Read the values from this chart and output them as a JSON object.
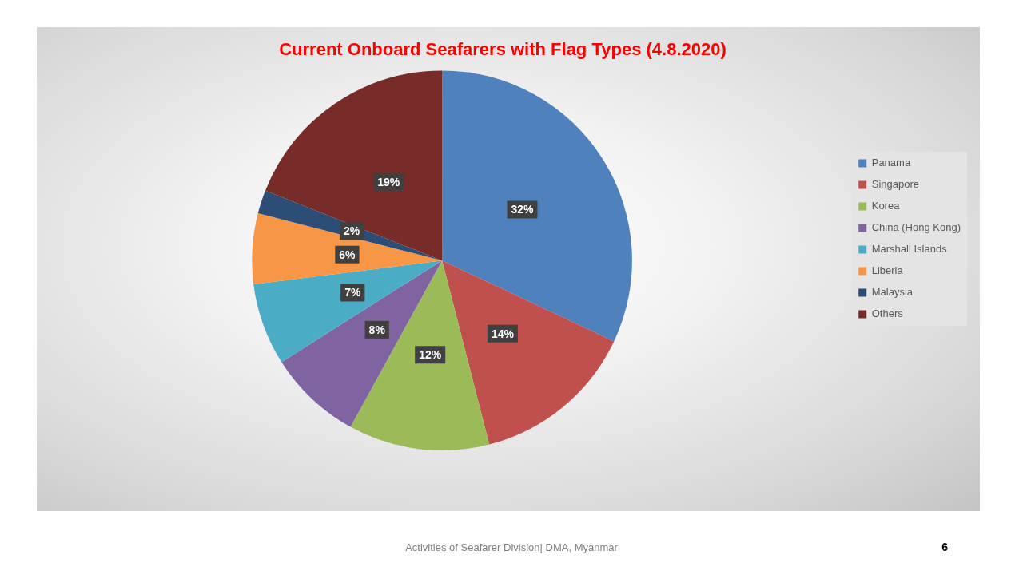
{
  "chart_data": {
    "type": "pie",
    "title": "Current Onboard Seafarers with Flag Types (4.8.2020)",
    "categories": [
      "Panama",
      "Singapore",
      "Korea",
      "China (Hong Kong)",
      "Marshall Islands",
      "Liberia",
      "Malaysia",
      "Others"
    ],
    "values": [
      32,
      14,
      12,
      8,
      7,
      6,
      2,
      19
    ],
    "colors": [
      "#4f81bd",
      "#c0504d",
      "#9bbb59",
      "#8064a2",
      "#4bacc6",
      "#f79646",
      "#2c4d75",
      "#772c2a"
    ],
    "value_labels": [
      "32%",
      "14%",
      "12%",
      "8%",
      "7%",
      "6%",
      "2%",
      "19%"
    ],
    "legend": "right",
    "annotations": [
      "Activities of Seafarer Division| DMA, Myanmar",
      "6"
    ]
  }
}
